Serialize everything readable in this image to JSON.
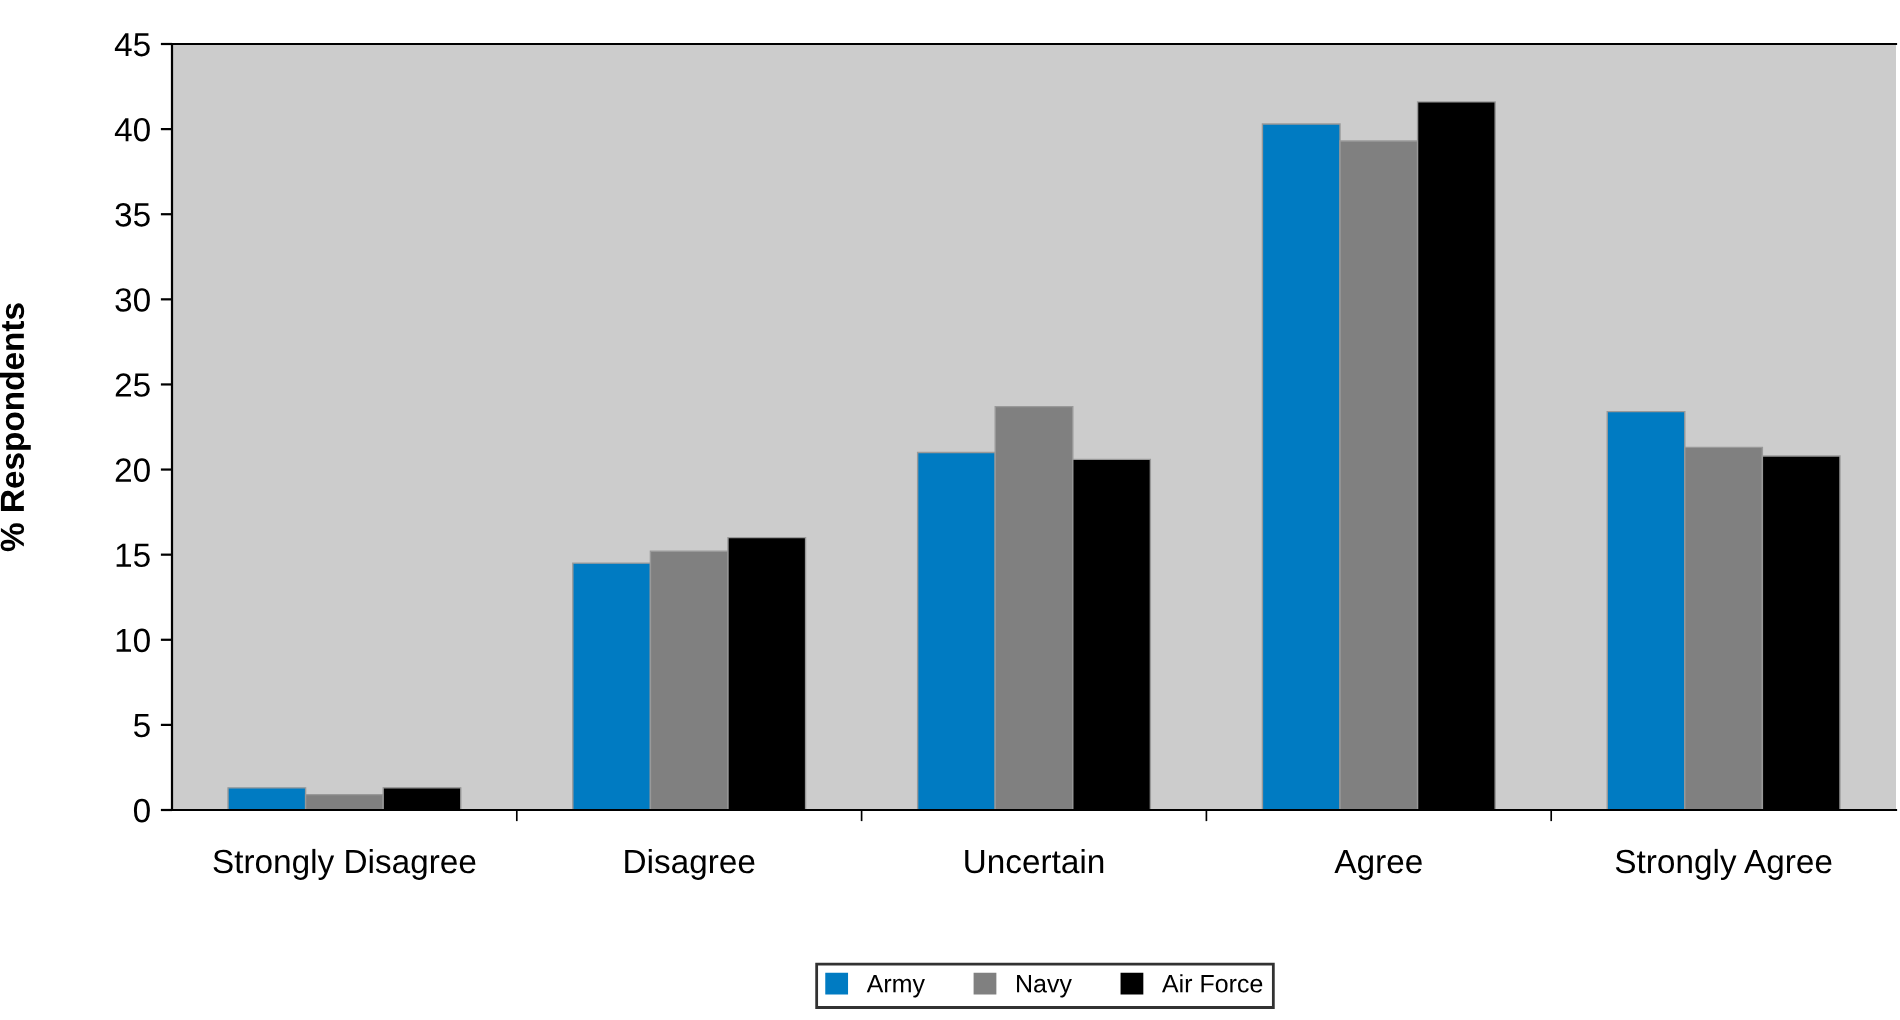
{
  "chart_data": {
    "type": "bar",
    "ylabel": "% Respondents",
    "categories": [
      "Strongly Disagree",
      "Disagree",
      "Uncertain",
      "Agree",
      "Strongly Agree"
    ],
    "series": [
      {
        "name": "Army",
        "color": "#007bc2",
        "values": [
          1.3,
          14.5,
          21.0,
          40.3,
          23.4
        ]
      },
      {
        "name": "Navy",
        "color": "#808080",
        "values": [
          0.9,
          15.2,
          23.7,
          39.3,
          21.3
        ]
      },
      {
        "name": "Air Force",
        "color": "#000000",
        "values": [
          1.3,
          16.0,
          20.6,
          41.6,
          20.8
        ]
      }
    ],
    "ylim": [
      0,
      45
    ],
    "yticks": [
      0,
      5,
      10,
      15,
      20,
      25,
      30,
      35,
      40,
      45
    ],
    "grid": false,
    "legend": "bottom"
  }
}
